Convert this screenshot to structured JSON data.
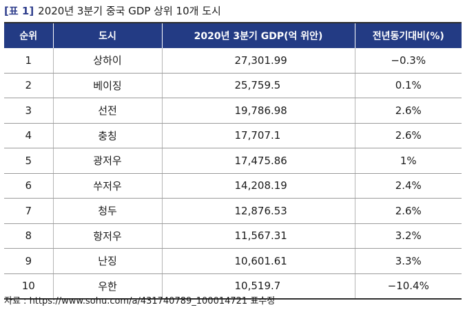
{
  "caption": {
    "tag": "[표 1]",
    "title": "2020년 3분기 중국 GDP 상위 10개 도시"
  },
  "table": {
    "headers": [
      "순위",
      "도시",
      "2020년 3분기 GDP(억 위안)",
      "전년동기대비(%)"
    ],
    "rows": [
      {
        "rank": "1",
        "city": "상하이",
        "gdp": "27,301.99",
        "change": "−0.3%"
      },
      {
        "rank": "2",
        "city": "베이징",
        "gdp": "25,759.5",
        "change": "0.1%"
      },
      {
        "rank": "3",
        "city": "선전",
        "gdp": "19,786.98",
        "change": "2.6%"
      },
      {
        "rank": "4",
        "city": "충칭",
        "gdp": "17,707.1",
        "change": "2.6%"
      },
      {
        "rank": "5",
        "city": "광저우",
        "gdp": "17,475.86",
        "change": "1%"
      },
      {
        "rank": "6",
        "city": "쑤저우",
        "gdp": "14,208.19",
        "change": "2.4%"
      },
      {
        "rank": "7",
        "city": "청두",
        "gdp": "12,876.53",
        "change": "2.6%"
      },
      {
        "rank": "8",
        "city": "항저우",
        "gdp": "11,567.31",
        "change": "3.2%"
      },
      {
        "rank": "9",
        "city": "난징",
        "gdp": "10,601.61",
        "change": "3.3%"
      },
      {
        "rank": "10",
        "city": "우한",
        "gdp": "10,519.7",
        "change": "−10.4%"
      }
    ]
  },
  "source": "자료 : https://www.sohu.com/a/431740789_100014721 표수정",
  "colors": {
    "header_bg": "#233b84",
    "header_text": "#ffffff",
    "caption_tag": "#2f3e8c"
  }
}
